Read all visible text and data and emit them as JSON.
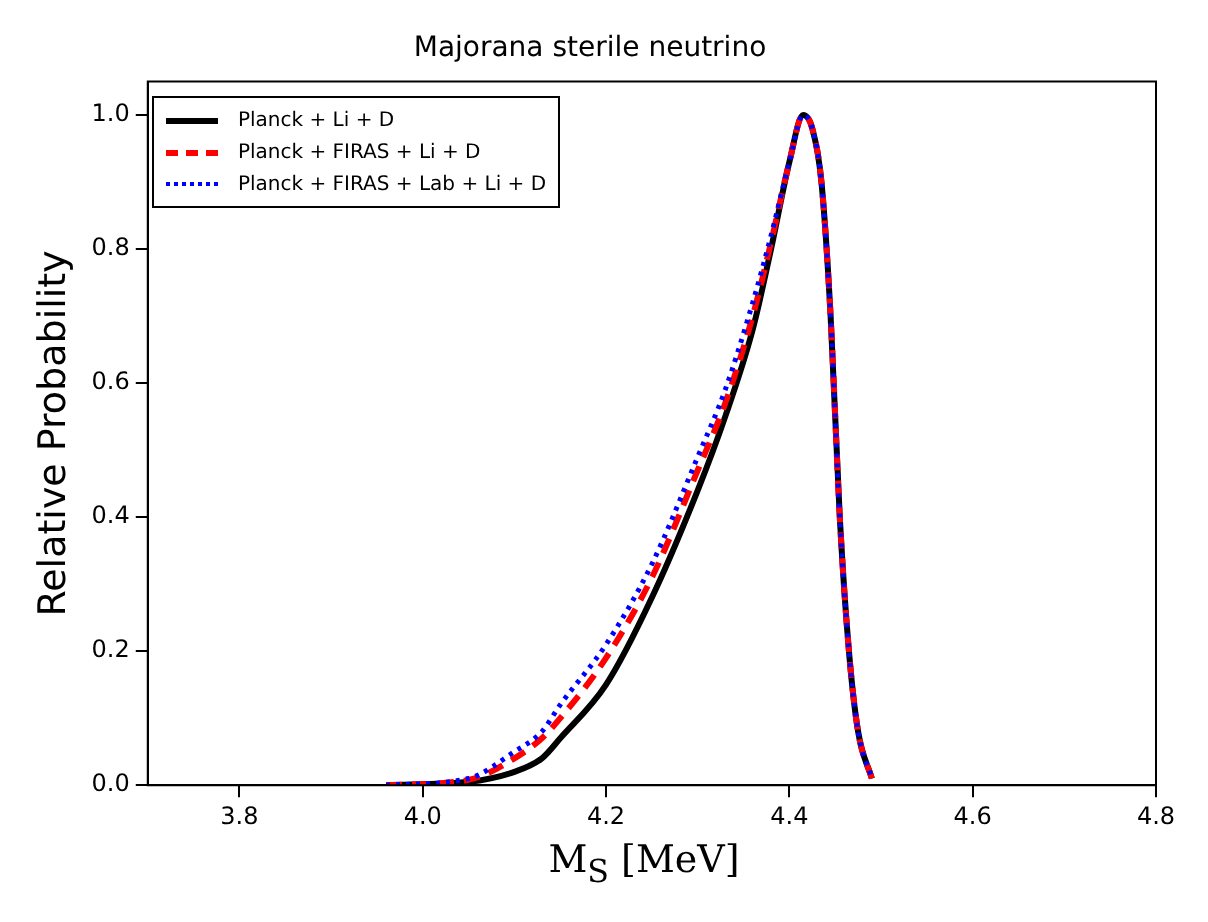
{
  "chart_data": {
    "type": "line",
    "title": "Majorana sterile neutrino",
    "xlabel": "M$_{S}$ [MeV]",
    "ylabel": "Relative Probability",
    "xlim": [
      3.7,
      4.8
    ],
    "xticks": [
      3.8,
      {
        "value": 4,
        "label": "4.0"
      },
      4.2,
      4.4,
      4.6,
      4.8
    ],
    "ylim": [
      0,
      1.05
    ],
    "yticks": [
      {
        "value": 0,
        "label": "0.0"
      },
      {
        "value": 0.2,
        "label": "0.2"
      },
      {
        "value": 0.4,
        "label": "0.4"
      },
      {
        "value": 0.6,
        "label": "0.6"
      },
      {
        "value": 0.8,
        "label": "0.8"
      },
      {
        "value": 1,
        "label": "1.0"
      }
    ],
    "grid": false,
    "legend": "top left",
    "marker": "none",
    "x": [
      3.96,
      4.05,
      4.1,
      4.13,
      4.15,
      4.2,
      4.25,
      4.3,
      4.33,
      4.36,
      4.38,
      4.4,
      4.415,
      4.425,
      4.435,
      4.445,
      4.455,
      4.465,
      4.475,
      4.49
    ],
    "series": [
      {
        "name": "Planck + Li + D",
        "color": "#000000",
        "line_style": "solid",
        "values": [
          0,
          0.005,
          0.02,
          0.04,
          0.07,
          0.15,
          0.28,
          0.44,
          0.55,
          0.68,
          0.8,
          0.93,
          1.0,
          0.98,
          0.9,
          0.7,
          0.4,
          0.2,
          0.08,
          0.01
        ]
      },
      {
        "name": "Planck + FIRAS + Li + D",
        "color": "#ff0000",
        "line_style": "dashed",
        "values": [
          0,
          0.008,
          0.04,
          0.07,
          0.1,
          0.19,
          0.31,
          0.47,
          0.57,
          0.7,
          0.81,
          0.93,
          1.0,
          0.98,
          0.9,
          0.7,
          0.4,
          0.2,
          0.08,
          0.01
        ]
      },
      {
        "name": "Planck + FIRAS + Lab + Li + D",
        "color": "#0000ff",
        "line_style": "dotted",
        "values": [
          0,
          0.01,
          0.05,
          0.08,
          0.12,
          0.21,
          0.33,
          0.49,
          0.59,
          0.72,
          0.82,
          0.93,
          1.0,
          0.98,
          0.9,
          0.7,
          0.4,
          0.2,
          0.08,
          0.01
        ]
      }
    ]
  }
}
